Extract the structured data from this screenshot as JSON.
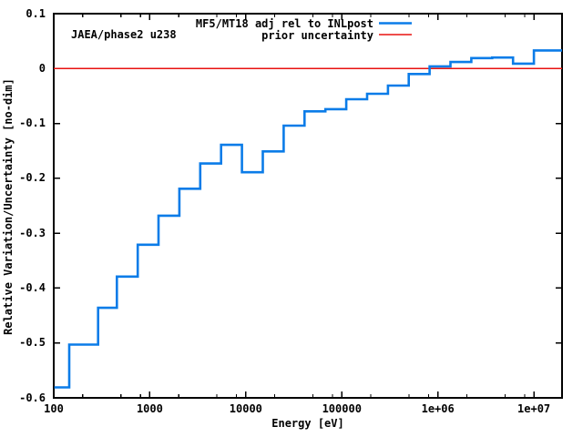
{
  "figure": {
    "background": "#ffffff",
    "corner_label": "JAEA/phase2 u238"
  },
  "chart_data": {
    "type": "line",
    "subtype": "log-x step histogram with horizontal reference line",
    "title": "",
    "xlabel": "Energy [eV]",
    "ylabel": "Relative Variation/Uncertainty [no-dim]",
    "xlim": [
      100,
      19640000
    ],
    "ylim": [
      -0.6,
      0.1
    ],
    "x_scale": "log10",
    "grid": false,
    "x_ticks": [
      "100",
      "1000",
      "10000",
      "100000",
      "1e+06",
      "1e+07"
    ],
    "x_tick_values": [
      100,
      1000,
      10000,
      100000,
      1000000,
      10000000
    ],
    "x_minor_tick_multipliers": [
      2,
      5,
      8
    ],
    "y_ticks": [
      "0.1",
      "0",
      "-0.1",
      "-0.2",
      "-0.3",
      "-0.4",
      "-0.5",
      "-0.6"
    ],
    "y_tick_values": [
      0.1,
      0,
      -0.1,
      -0.2,
      -0.3,
      -0.4,
      -0.5,
      -0.6
    ],
    "legend_position": "top-center-inside, right-aligned text with line samples",
    "legend": [
      {
        "label": "MF5/MT18 adj rel to INLpost",
        "color": "#0b7ce8"
      },
      {
        "label": "prior uncertainty",
        "color": "#e81210"
      }
    ],
    "series": [
      {
        "name": "MF5/MT18 adj rel to INLpost",
        "type": "step",
        "color": "#0b7ce8",
        "energy_boundaries_eV": [
          101.3,
          145,
          290,
          454,
          748.5,
          1234,
          2035,
          3355,
          5531,
          9119,
          15034,
          24788,
          40868,
          67379,
          111090,
          183160,
          301970,
          497870,
          820850,
          1353400,
          2231300,
          3678800,
          6065300,
          10000000,
          19640000
        ],
        "values": [
          -0.581,
          -0.503,
          -0.436,
          -0.379,
          -0.321,
          -0.268,
          -0.219,
          -0.173,
          -0.139,
          -0.189,
          -0.151,
          -0.104,
          -0.078,
          -0.074,
          -0.056,
          -0.046,
          -0.031,
          -0.01,
          0.004,
          0.012,
          0.019,
          0.02,
          0.009,
          0.033
        ]
      },
      {
        "name": "prior uncertainty",
        "type": "hline",
        "color": "#e81210",
        "y": 0.0
      }
    ],
    "annotations": [
      {
        "text": "JAEA/phase2 u238",
        "position": "top-left-inside"
      }
    ]
  }
}
